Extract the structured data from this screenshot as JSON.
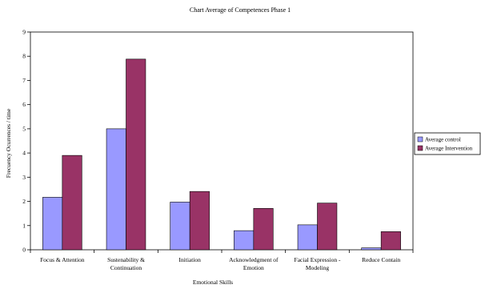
{
  "chart_data": {
    "type": "bar",
    "title": "Chart Average of Competences Phase 1",
    "xlabel": "Emotional Skills",
    "ylabel": "Frecuency Ocurrences / time",
    "ylim": [
      0,
      9
    ],
    "yticks": [
      0,
      1,
      2,
      3,
      4,
      5,
      6,
      7,
      8,
      9
    ],
    "grid": false,
    "legend_position": "right",
    "categories": [
      [
        "Focus & Attention"
      ],
      [
        "Sustenability &",
        "Continuation"
      ],
      [
        "Initiation"
      ],
      [
        "Acknowledgment of",
        "Emotion"
      ],
      [
        "Facial Expression -",
        "Modeling"
      ],
      [
        "Reduce Contain"
      ]
    ],
    "series": [
      {
        "name": "Average control",
        "color": "#9999ff",
        "values": [
          2.17,
          5.0,
          1.97,
          0.79,
          1.03,
          0.08
        ]
      },
      {
        "name": "Average Intervention",
        "color": "#993366",
        "values": [
          3.9,
          7.88,
          2.41,
          1.71,
          1.93,
          0.75
        ]
      }
    ]
  }
}
